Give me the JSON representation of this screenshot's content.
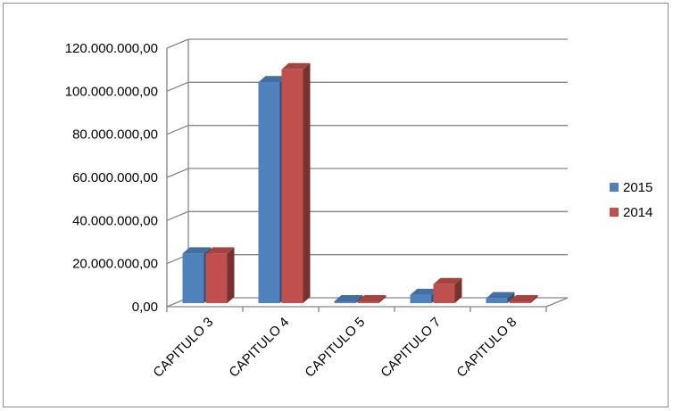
{
  "chart_data": {
    "type": "bar",
    "categories": [
      "CAPITULO 3",
      "CAPITULO 4",
      "CAPITULO 5",
      "CAPITULO 7",
      "CAPITULO 8"
    ],
    "series": [
      {
        "name": "2015",
        "values": [
          23000000,
          102500000,
          300000,
          3800000,
          2200000
        ],
        "color": "#4f81bd"
      },
      {
        "name": "2014",
        "values": [
          23000000,
          108500000,
          600000,
          8800000,
          500000
        ],
        "color": "#c0504d"
      }
    ],
    "y_ticks": [
      "0,00",
      "20.000.000,00",
      "40.000.000,00",
      "60.000.000,00",
      "80.000.000,00",
      "100.000.000,00",
      "120.000.000,00"
    ],
    "ylim": [
      0,
      120000000
    ],
    "grid": true,
    "legend_position": "right",
    "style": "3d-clustered-column"
  }
}
